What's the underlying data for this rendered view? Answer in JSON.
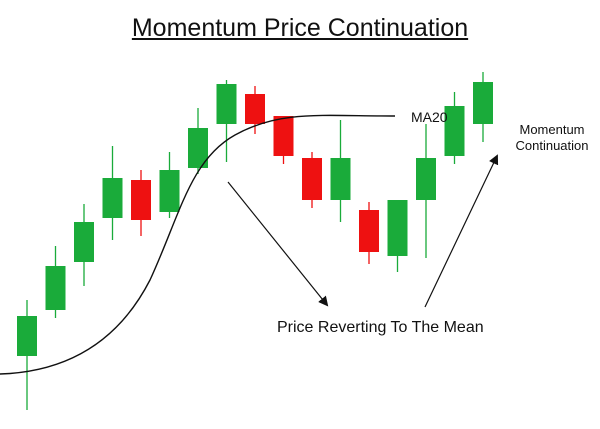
{
  "title": "Momentum Price Continuation",
  "labels": {
    "ma": "MA20",
    "momentum_line1": "Momentum",
    "momentum_line2": "Continuation",
    "reverting": "Price Reverting To The Mean"
  },
  "colors": {
    "bull": "#1aab3a",
    "bear": "#ee1111",
    "wick_bull": "#1aab3a",
    "wick_bear": "#ee1111",
    "line": "#111111"
  },
  "chart_data": {
    "type": "candlestick",
    "candles": [
      {
        "dir": "up",
        "open": 4.7,
        "close": 2.7,
        "high": 5.5,
        "low": 0.0
      },
      {
        "dir": "up",
        "open": 7.2,
        "close": 5.0,
        "high": 8.2,
        "low": 4.6
      },
      {
        "dir": "up",
        "open": 9.4,
        "close": 7.4,
        "high": 10.3,
        "low": 6.2
      },
      {
        "dir": "up",
        "open": 11.6,
        "close": 9.6,
        "high": 13.2,
        "low": 8.5
      },
      {
        "dir": "down",
        "open": 11.5,
        "close": 9.5,
        "high": 12.0,
        "low": 8.7
      },
      {
        "dir": "up",
        "open": 12.0,
        "close": 9.9,
        "high": 12.9,
        "low": 9.6
      },
      {
        "dir": "up",
        "open": 14.1,
        "close": 12.1,
        "high": 15.1,
        "low": 11.8
      },
      {
        "dir": "up",
        "open": 16.3,
        "close": 14.3,
        "high": 16.5,
        "low": 12.4
      },
      {
        "dir": "down",
        "open": 15.8,
        "close": 14.3,
        "high": 16.2,
        "low": 13.8
      },
      {
        "dir": "down",
        "open": 14.7,
        "close": 12.7,
        "high": 14.7,
        "low": 12.3
      },
      {
        "dir": "down",
        "open": 12.6,
        "close": 10.5,
        "high": 12.9,
        "low": 10.1
      },
      {
        "dir": "up",
        "open": 12.6,
        "close": 10.5,
        "high": 14.5,
        "low": 9.4
      },
      {
        "dir": "down",
        "open": 10.0,
        "close": 7.9,
        "high": 10.4,
        "low": 7.3
      },
      {
        "dir": "up",
        "open": 10.5,
        "close": 7.7,
        "high": 10.5,
        "low": 6.9
      },
      {
        "dir": "up",
        "open": 12.6,
        "close": 10.5,
        "high": 14.3,
        "low": 7.6
      },
      {
        "dir": "up",
        "open": 15.2,
        "close": 12.7,
        "high": 15.9,
        "low": 12.3
      },
      {
        "dir": "up",
        "open": 16.4,
        "close": 14.3,
        "high": 16.9,
        "low": 13.4
      }
    ],
    "ma_label": "MA20"
  }
}
